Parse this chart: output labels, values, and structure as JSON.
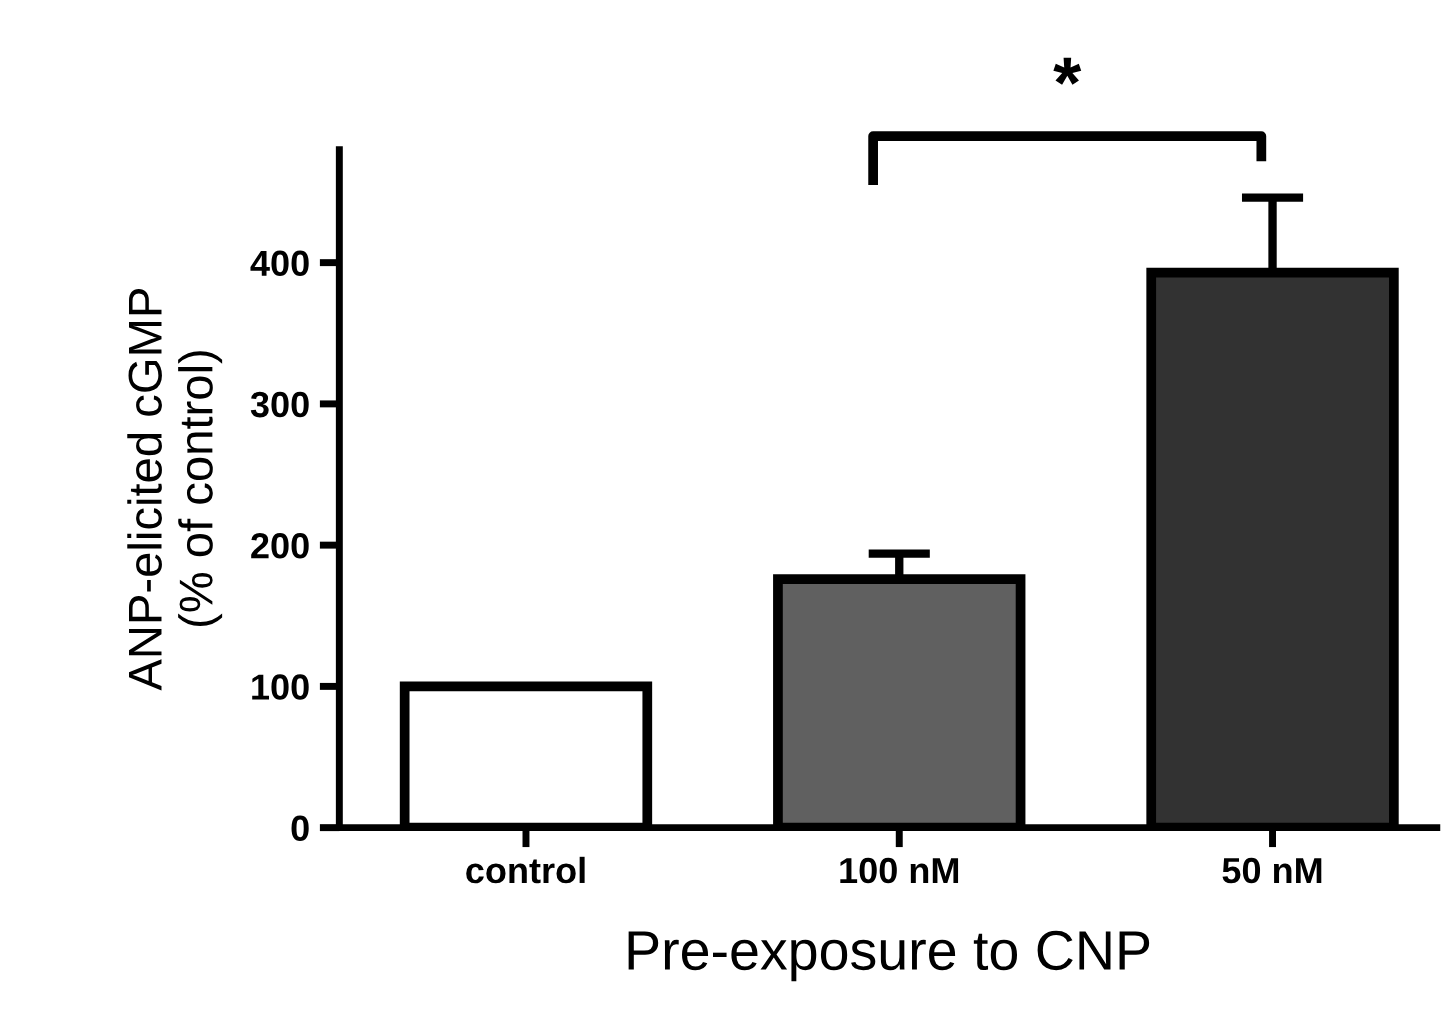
{
  "chart_data": {
    "type": "bar",
    "xlabel": "Pre-exposure to CNP",
    "ylabel": "ANP-elicited cGMP\n(% of control)",
    "categories": [
      "control",
      "100 nM",
      "50 nM"
    ],
    "values": [
      100,
      176,
      393
    ],
    "errors": [
      null,
      18,
      53
    ],
    "colors": [
      "#ffffff",
      "#606060",
      "#323232"
    ],
    "ylim": [
      0,
      480
    ],
    "yticks": [
      0,
      100,
      200,
      300,
      400
    ],
    "annotations": [
      "*"
    ],
    "grid": false,
    "legend": false
  }
}
